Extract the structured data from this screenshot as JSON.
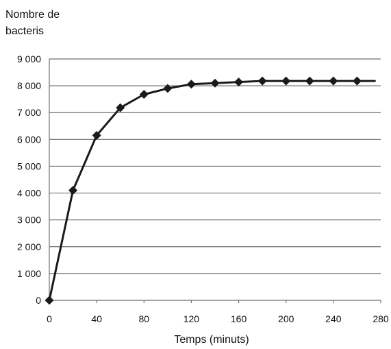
{
  "chart_data": {
    "type": "line",
    "title": "",
    "ylabel_lines": [
      "Nombre de",
      "bacteris"
    ],
    "xlabel": "Temps (minuts)",
    "xlim": [
      0,
      280
    ],
    "ylim": [
      0,
      9000
    ],
    "grid": true,
    "xticks": [
      0,
      40,
      80,
      120,
      160,
      200,
      240,
      280
    ],
    "xtick_labels": [
      "0",
      "40",
      "80",
      "120",
      "160",
      "200",
      "240",
      "280"
    ],
    "yticks": [
      0,
      1000,
      2000,
      3000,
      4000,
      5000,
      6000,
      7000,
      8000,
      9000
    ],
    "ytick_labels": [
      "0",
      "1 000",
      "2 000",
      "3 000",
      "4 000",
      "5 000",
      "6 000",
      "7 000",
      "8 000",
      "9 000"
    ],
    "series": [
      {
        "x": [
          0,
          20,
          40,
          60,
          80,
          100,
          120,
          140,
          160,
          180,
          200,
          220,
          240,
          260,
          275
        ],
        "y": [
          0,
          4100,
          6150,
          7180,
          7680,
          7900,
          8060,
          8100,
          8140,
          8180,
          8180,
          8180,
          8180,
          8180,
          8180
        ],
        "markers": [
          true,
          true,
          true,
          true,
          true,
          true,
          true,
          true,
          true,
          true,
          true,
          true,
          true,
          true,
          false
        ],
        "color": "#1a1a1a"
      }
    ]
  }
}
